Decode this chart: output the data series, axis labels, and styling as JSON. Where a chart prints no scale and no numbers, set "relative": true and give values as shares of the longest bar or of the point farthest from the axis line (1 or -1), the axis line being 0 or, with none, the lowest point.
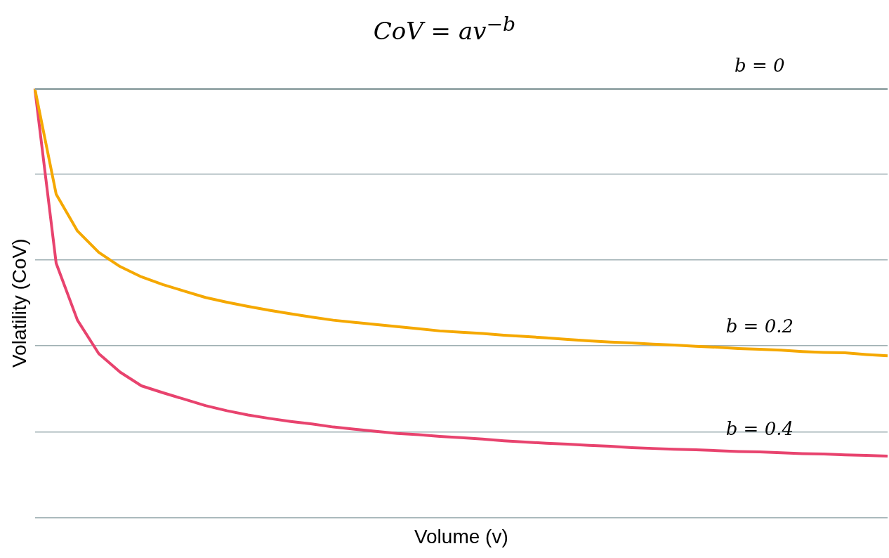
{
  "chart_data": {
    "type": "line",
    "title": "CoV = av$^{−b}$",
    "xlabel": "Volume (v)",
    "ylabel": "Volatility (CoV)",
    "relative": true,
    "grid": "y",
    "marker": "none",
    "categories": [
      null,
      null,
      null,
      null,
      null,
      null,
      null,
      null,
      null,
      null,
      null,
      null,
      null,
      null,
      null,
      null,
      null,
      null,
      null,
      null,
      null,
      null,
      null,
      null,
      null,
      null,
      null,
      null,
      null,
      null,
      null,
      null,
      null,
      null,
      null,
      null,
      null,
      null,
      null,
      null,
      null
    ],
    "series": [
      {
        "name": "b = 0",
        "color": "#95a5a6",
        "values": [
          1,
          1,
          1,
          1,
          1,
          1,
          1,
          1,
          1,
          1,
          1,
          1,
          1,
          1,
          1,
          1,
          1,
          1,
          1,
          1,
          1,
          1,
          1,
          1,
          1,
          1,
          1,
          1,
          1,
          1,
          1,
          1,
          1,
          1,
          1,
          1,
          1,
          1,
          1,
          1,
          1
        ]
      },
      {
        "name": "b = 0.2",
        "color": "#f5a800",
        "values": [
          1,
          0.754,
          0.668,
          0.618,
          0.585,
          0.561,
          0.543,
          0.528,
          0.513,
          0.502,
          0.492,
          0.483,
          0.475,
          0.467,
          0.46,
          0.455,
          0.45,
          0.445,
          0.44,
          0.435,
          0.432,
          0.429,
          0.425,
          0.422,
          0.419,
          0.415,
          0.412,
          0.409,
          0.407,
          0.404,
          0.402,
          0.399,
          0.397,
          0.394,
          0.392,
          0.39,
          0.387,
          0.385,
          0.384,
          0.38,
          0.377
        ]
      },
      {
        "name": "b = 0.4",
        "color": "#e8436e",
        "values": [
          1,
          0.593,
          0.46,
          0.382,
          0.339,
          0.307,
          0.291,
          0.276,
          0.261,
          0.249,
          0.239,
          0.231,
          0.224,
          0.218,
          0.211,
          0.206,
          0.201,
          0.196,
          0.193,
          0.189,
          0.186,
          0.183,
          0.179,
          0.176,
          0.173,
          0.171,
          0.168,
          0.166,
          0.163,
          0.161,
          0.159,
          0.158,
          0.156,
          0.154,
          0.153,
          0.151,
          0.149,
          0.148,
          0.146,
          0.145,
          0.143
        ]
      }
    ]
  }
}
